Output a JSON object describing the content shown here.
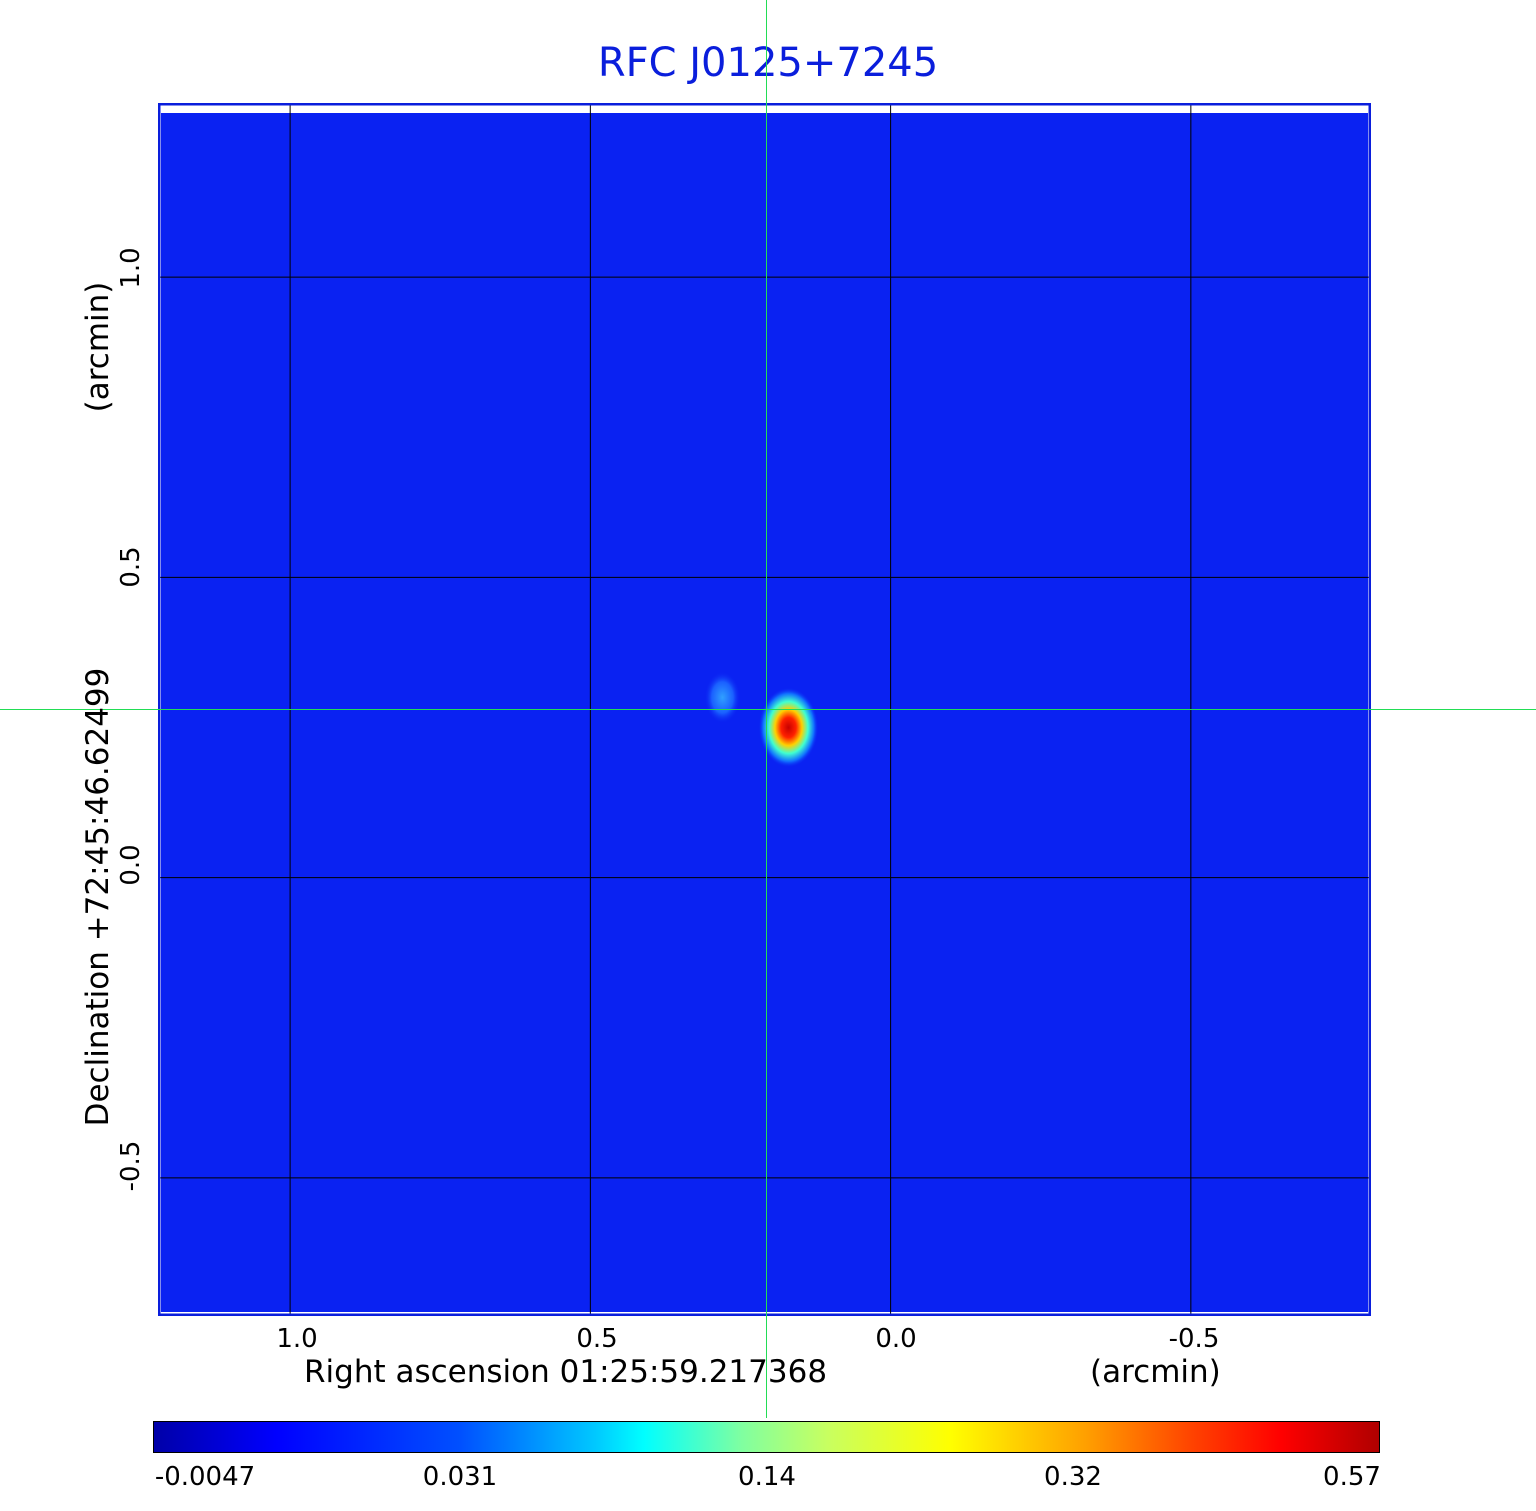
{
  "chart_data": {
    "type": "heatmap",
    "title": "RFC J0125+7245",
    "xlabel": "Right ascension  01:25:59.217368",
    "x_unit": "(arcmin)",
    "ylabel": "Declination  +72:45:46.62499",
    "y_unit": "(arcmin)",
    "x_ticks": [
      1.0,
      0.5,
      0.0,
      -0.5
    ],
    "x_tick_labels": [
      "1.0",
      "0.5",
      "0.0",
      "-0.5"
    ],
    "y_ticks": [
      1.0,
      0.5,
      0.0,
      -0.5
    ],
    "y_tick_labels": [
      "1.0",
      "0.5",
      "0.0",
      "-0.5"
    ],
    "xlim": [
      1.22,
      -0.8
    ],
    "ylim": [
      -0.73,
      1.29
    ],
    "grid": true,
    "crosshair": {
      "x": 0.205,
      "y": 0.283
    },
    "colormap": "jet",
    "colorbar": {
      "tick_labels": [
        "-0.0047",
        "0.031",
        "0.14",
        "0.32",
        "0.57"
      ],
      "range": [
        -0.0047,
        0.57
      ]
    },
    "features": [
      {
        "x": 0.17,
        "y": 0.25,
        "value": 0.57,
        "kind": "peak"
      },
      {
        "x": 0.28,
        "y": 0.3,
        "value": 0.09,
        "kind": "secondary"
      }
    ]
  },
  "colors": {
    "title": "#0a1edc",
    "frame": "#0a1edc",
    "background_field": "#0a22f2",
    "grid": "#000000",
    "crosshair": "#22dd55"
  }
}
